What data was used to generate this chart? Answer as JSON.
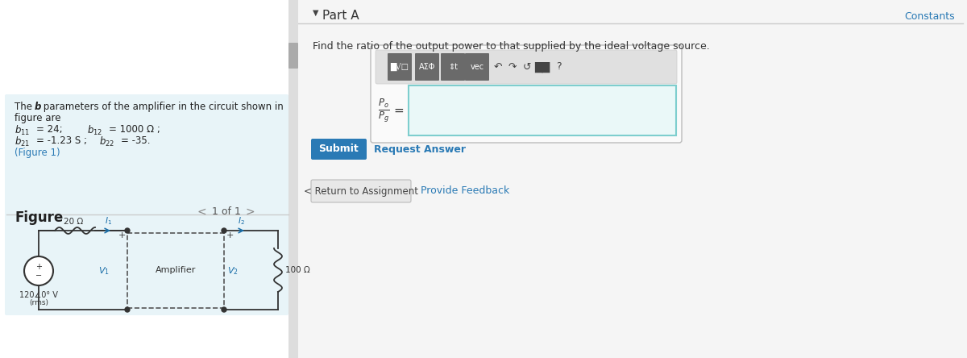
{
  "bg_color": "#ffffff",
  "left_panel_bg": "#e8f4f8",
  "divider_color": "#cccccc",
  "constants_text": "Constants",
  "constants_color": "#2a7ab5",
  "figure_label": "Figure",
  "nav_text": "1 of 1",
  "part_a_label": "Part A",
  "question_text": "Find the ratio of the output power to that supplied by the ideal voltage source.",
  "submit_text": "Submit",
  "submit_bg": "#2a7ab5",
  "request_text": "Request Answer",
  "return_text": "< Return to Assignment",
  "feedback_text": "Provide Feedback"
}
